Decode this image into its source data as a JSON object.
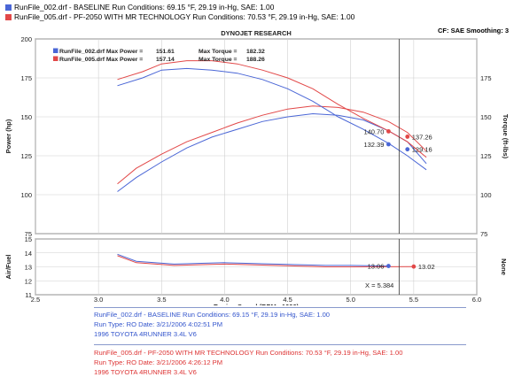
{
  "colors": {
    "blue": "#4a66d6",
    "red": "#e24848",
    "frame": "#555555",
    "grid": "#cfcfcf"
  },
  "header": {
    "run1": "RunFile_002.drf - BASELINE    Run Conditions: 69.15 °F, 29.19 in-Hg, SAE: 1.00",
    "run2": "RunFile_005.drf - PF-2050 WITH MR TECHNOLOGY    Run Conditions: 70.53 °F, 29.19 in-Hg, SAE: 1.00",
    "cf": "CF: SAE  Smoothing: 3"
  },
  "chart_data": [
    {
      "type": "line",
      "title": "DYNOJET RESEARCH",
      "xlabel": "Engine Speed (RPM x1000)",
      "ylabel": "Power (hp)",
      "y2label": "Torque (ft-lbs)",
      "xlim": [
        2.5,
        6.0
      ],
      "ylim": [
        75,
        200
      ],
      "y2lim": [
        75,
        200
      ],
      "xticks": [
        "2.5",
        "3.0",
        "3.5",
        "4.0",
        "4.5",
        "5.0",
        "5.5",
        "6.0"
      ],
      "yticks": [
        "75",
        "100",
        "125",
        "150",
        "175",
        "200"
      ],
      "y2ticks": [
        "75",
        "100",
        "125",
        "150",
        "175"
      ],
      "grid": true,
      "cursor_x": 5.384,
      "legend": [
        {
          "label": "RunFile_002.drf Max Power =",
          "value": "151.61",
          "tlabel": "Max Torque =",
          "tvalue": "182.32"
        },
        {
          "label": "RunFile_005.drf Max Power =",
          "value": "157.14",
          "tlabel": "Max Torque =",
          "tvalue": "188.26"
        }
      ],
      "series": [
        {
          "name": "RunFile_002.drf Power",
          "color": "blue",
          "x": [
            3.15,
            3.3,
            3.5,
            3.7,
            3.9,
            4.1,
            4.3,
            4.5,
            4.7,
            4.9,
            5.1,
            5.3,
            5.45,
            5.6
          ],
          "y": [
            102,
            111,
            121,
            130,
            137,
            142,
            147,
            150,
            152,
            151,
            148,
            141,
            134,
            120
          ]
        },
        {
          "name": "RunFile_005.drf Power",
          "color": "red",
          "x": [
            3.15,
            3.3,
            3.5,
            3.7,
            3.9,
            4.1,
            4.3,
            4.5,
            4.7,
            4.9,
            5.1,
            5.3,
            5.45,
            5.6
          ],
          "y": [
            107,
            117,
            126,
            134,
            140,
            146,
            151,
            155,
            157,
            156,
            153,
            147,
            140,
            128
          ]
        },
        {
          "name": "RunFile_002.drf Torque",
          "color": "blue",
          "x": [
            3.15,
            3.35,
            3.5,
            3.7,
            3.9,
            4.1,
            4.3,
            4.5,
            4.7,
            4.9,
            5.1,
            5.3,
            5.45,
            5.6
          ],
          "y": [
            170,
            175,
            180,
            181,
            180,
            178,
            174,
            168,
            160,
            150,
            142,
            133,
            125,
            116
          ]
        },
        {
          "name": "RunFile_005.drf Torque",
          "color": "red",
          "x": [
            3.15,
            3.35,
            3.5,
            3.7,
            3.9,
            4.1,
            4.3,
            4.5,
            4.7,
            4.9,
            5.1,
            5.3,
            5.45,
            5.6
          ],
          "y": [
            174,
            179,
            184,
            186,
            186,
            184,
            180,
            175,
            168,
            158,
            149,
            141,
            134,
            124
          ]
        }
      ],
      "readouts": [
        {
          "value": "140.70",
          "x": 5.3,
          "y": 140.7,
          "color": "red",
          "side": "left"
        },
        {
          "value": "132.39",
          "x": 5.3,
          "y": 132.39,
          "color": "blue",
          "side": "left"
        },
        {
          "value": "137.26",
          "x": 5.45,
          "y": 137.26,
          "color": "red",
          "side": "right"
        },
        {
          "value": "129.16",
          "x": 5.45,
          "y": 129.16,
          "color": "blue",
          "side": "right"
        }
      ]
    },
    {
      "type": "line",
      "xlabel": "Engine Speed (RPM x1000)",
      "ylabel": "Air/Fuel",
      "y2label": "None",
      "xlim": [
        2.5,
        6.0
      ],
      "ylim": [
        11,
        15
      ],
      "yticks": [
        "11",
        "12",
        "13",
        "14",
        "15"
      ],
      "grid": true,
      "cursor_label": "X = 5.384",
      "series": [
        {
          "name": "RunFile_002.drf Air/Fuel",
          "color": "blue",
          "x": [
            3.15,
            3.3,
            3.6,
            4.0,
            4.4,
            4.8,
            5.0,
            5.3
          ],
          "y": [
            13.9,
            13.4,
            13.2,
            13.3,
            13.2,
            13.1,
            13.1,
            13.06
          ]
        },
        {
          "name": "RunFile_005.drf Air/Fuel",
          "color": "red",
          "x": [
            3.15,
            3.3,
            3.6,
            4.0,
            4.4,
            4.8,
            5.0,
            5.5
          ],
          "y": [
            13.8,
            13.3,
            13.1,
            13.2,
            13.1,
            13.0,
            13.0,
            13.02
          ]
        }
      ],
      "readouts": [
        {
          "value": "13.06",
          "x": 5.3,
          "y": 13.06,
          "color": "blue",
          "side": "left"
        },
        {
          "value": "13.02",
          "x": 5.5,
          "y": 13.02,
          "color": "red",
          "side": "right"
        }
      ]
    }
  ],
  "info": {
    "run1": {
      "line1": "RunFile_002.drf - BASELINE    Run Conditions: 69.15 °F, 29.19 in-Hg, SAE: 1.00",
      "line2": "Run Type: RO  Date: 3/21/2006 4:02:51 PM",
      "line3": "1996 TOYOTA 4RUNNER 3.4L V6"
    },
    "run2": {
      "line1": "RunFile_005.drf - PF-2050 WITH MR TECHNOLOGY    Run Conditions: 70.53 °F, 29.19 in-Hg, SAE: 1.00",
      "line2": "Run Type: RO  Date: 3/21/2006 4:26:12 PM",
      "line3": "1996 TOYOTA 4RUNNER 3.4L V6"
    }
  }
}
